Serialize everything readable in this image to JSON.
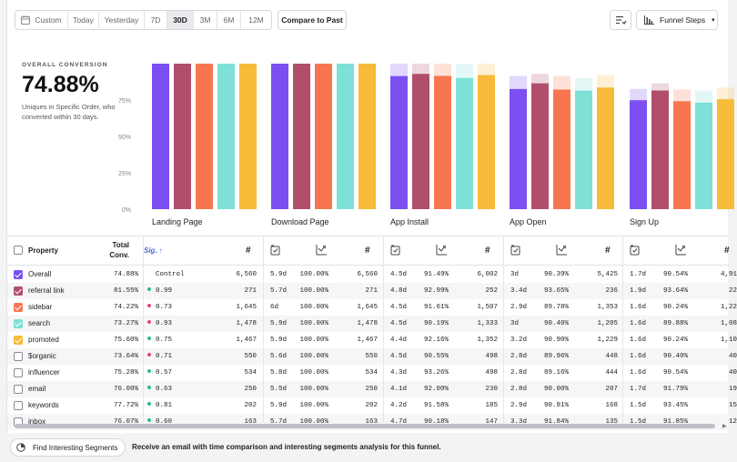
{
  "toolbar": {
    "date_ranges": [
      "Custom",
      "Today",
      "Yesterday",
      "7D",
      "30D",
      "3M",
      "6M",
      "12M"
    ],
    "active_range": "30D",
    "compare_label": "Compare to Past",
    "funnel_steps_label": "Funnel Steps"
  },
  "overview": {
    "label": "OVERALL CONVERSION",
    "value": "74.88%",
    "description": "Uniques in Specific Order, who converted within 30 days."
  },
  "chart_data": {
    "type": "bar",
    "categories": [
      "Landing Page",
      "Download Page",
      "App Install",
      "App Open",
      "Sign Up"
    ],
    "yticks": [
      "75%",
      "50%",
      "25%",
      "0%"
    ],
    "ylim": [
      0,
      100
    ],
    "series": [
      {
        "name": "Overall",
        "color": "#7b4ff1",
        "values": [
          100,
          100,
          91.49,
          82.6,
          74.88
        ]
      },
      {
        "name": "referral link",
        "color": "#b04e6c",
        "values": [
          100,
          100,
          92.99,
          86.5,
          81.55
        ]
      },
      {
        "name": "sidebar",
        "color": "#f8764f",
        "values": [
          100,
          100,
          91.61,
          82.2,
          74.22
        ]
      },
      {
        "name": "search",
        "color": "#7ee0d6",
        "values": [
          100,
          100,
          90.19,
          81.5,
          73.27
        ]
      },
      {
        "name": "promoted",
        "color": "#f7bb39",
        "values": [
          100,
          100,
          92.16,
          83.6,
          75.6
        ]
      }
    ]
  },
  "table": {
    "headers": {
      "property": "Property",
      "total_conv": [
        "Total",
        "Conv."
      ],
      "sig": "Sig."
    },
    "rows": [
      {
        "name": "Overall",
        "checked": true,
        "color": "#7b4ff1",
        "total": "74.88%",
        "sig": "Control",
        "dot": "",
        "v1": "6,560",
        "s2": [
          "5.9d",
          "100.00%",
          "6,560"
        ],
        "s3": [
          "4.5d",
          "91.49%",
          "6,002"
        ],
        "s4": [
          "3d",
          "90.39%",
          "5,425"
        ],
        "s5": [
          "1.7d",
          "90.54%",
          "4,91"
        ]
      },
      {
        "name": "referral link",
        "checked": true,
        "color": "#b04e6c",
        "total": "81.55%",
        "sig": "0.99",
        "dot": "#2ebd85",
        "v1": "271",
        "s2": [
          "5.7d",
          "100.00%",
          "271"
        ],
        "s3": [
          "4.8d",
          "92.99%",
          "252"
        ],
        "s4": [
          "3.4d",
          "93.65%",
          "236"
        ],
        "s5": [
          "1.9d",
          "93.64%",
          "22"
        ]
      },
      {
        "name": "sidebar",
        "checked": true,
        "color": "#f8764f",
        "total": "74.22%",
        "sig": "0.73",
        "dot": "#e8456b",
        "v1": "1,645",
        "s2": [
          "6d",
          "100.00%",
          "1,645"
        ],
        "s3": [
          "4.5d",
          "91.61%",
          "1,507"
        ],
        "s4": [
          "2.9d",
          "89.78%",
          "1,353"
        ],
        "s5": [
          "1.6d",
          "90.24%",
          "1,22"
        ]
      },
      {
        "name": "search",
        "checked": true,
        "color": "#7ee0d6",
        "total": "73.27%",
        "sig": "0.93",
        "dot": "#e8456b",
        "v1": "1,478",
        "s2": [
          "5.9d",
          "100.00%",
          "1,478"
        ],
        "s3": [
          "4.5d",
          "90.19%",
          "1,333"
        ],
        "s4": [
          "3d",
          "90.40%",
          "1,205"
        ],
        "s5": [
          "1.6d",
          "89.88%",
          "1,08"
        ]
      },
      {
        "name": "promoted",
        "checked": true,
        "color": "#f7bb39",
        "total": "75.60%",
        "sig": "0.75",
        "dot": "#2ebd85",
        "v1": "1,467",
        "s2": [
          "5.9d",
          "100.00%",
          "1,467"
        ],
        "s3": [
          "4.4d",
          "92.16%",
          "1,352"
        ],
        "s4": [
          "3.2d",
          "90.90%",
          "1,229"
        ],
        "s5": [
          "1.6d",
          "90.24%",
          "1,10"
        ]
      },
      {
        "name": "$organic",
        "checked": false,
        "color": "",
        "total": "73.64%",
        "sig": "0.71",
        "dot": "#e8456b",
        "v1": "550",
        "s2": [
          "5.6d",
          "100.00%",
          "550"
        ],
        "s3": [
          "4.5d",
          "90.55%",
          "498"
        ],
        "s4": [
          "2.8d",
          "89.96%",
          "448"
        ],
        "s5": [
          "1.6d",
          "90.40%",
          "40"
        ]
      },
      {
        "name": "influencer",
        "checked": false,
        "color": "",
        "total": "75.28%",
        "sig": "0.57",
        "dot": "#2ebd85",
        "v1": "534",
        "s2": [
          "5.8d",
          "100.00%",
          "534"
        ],
        "s3": [
          "4.3d",
          "93.26%",
          "498"
        ],
        "s4": [
          "2.8d",
          "89.16%",
          "444"
        ],
        "s5": [
          "1.6d",
          "90.54%",
          "40"
        ]
      },
      {
        "name": "email",
        "checked": false,
        "color": "",
        "total": "76.00%",
        "sig": "0.63",
        "dot": "#2ebd85",
        "v1": "250",
        "s2": [
          "5.5d",
          "100.00%",
          "250"
        ],
        "s3": [
          "4.1d",
          "92.00%",
          "230"
        ],
        "s4": [
          "2.8d",
          "90.00%",
          "207"
        ],
        "s5": [
          "1.7d",
          "91.79%",
          "19"
        ]
      },
      {
        "name": "keywords",
        "checked": false,
        "color": "",
        "total": "77.72%",
        "sig": "0.81",
        "dot": "#2ebd85",
        "v1": "202",
        "s2": [
          "5.9d",
          "100.00%",
          "202"
        ],
        "s3": [
          "4.2d",
          "91.58%",
          "185"
        ],
        "s4": [
          "2.9d",
          "90.81%",
          "168"
        ],
        "s5": [
          "1.5d",
          "93.45%",
          "15"
        ]
      },
      {
        "name": "inbox",
        "checked": false,
        "color": "",
        "total": "76.07%",
        "sig": "0.60",
        "dot": "#2ebd85",
        "v1": "163",
        "s2": [
          "5.7d",
          "100.00%",
          "163"
        ],
        "s3": [
          "4.7d",
          "90.18%",
          "147"
        ],
        "s4": [
          "3.3d",
          "91.84%",
          "135"
        ],
        "s5": [
          "1.5d",
          "91.85%",
          "12"
        ]
      }
    ]
  },
  "footer": {
    "find_label": "Find Interesting Segments",
    "text": "Receive an email with time comparison and interesting segments analysis for this funnel."
  }
}
